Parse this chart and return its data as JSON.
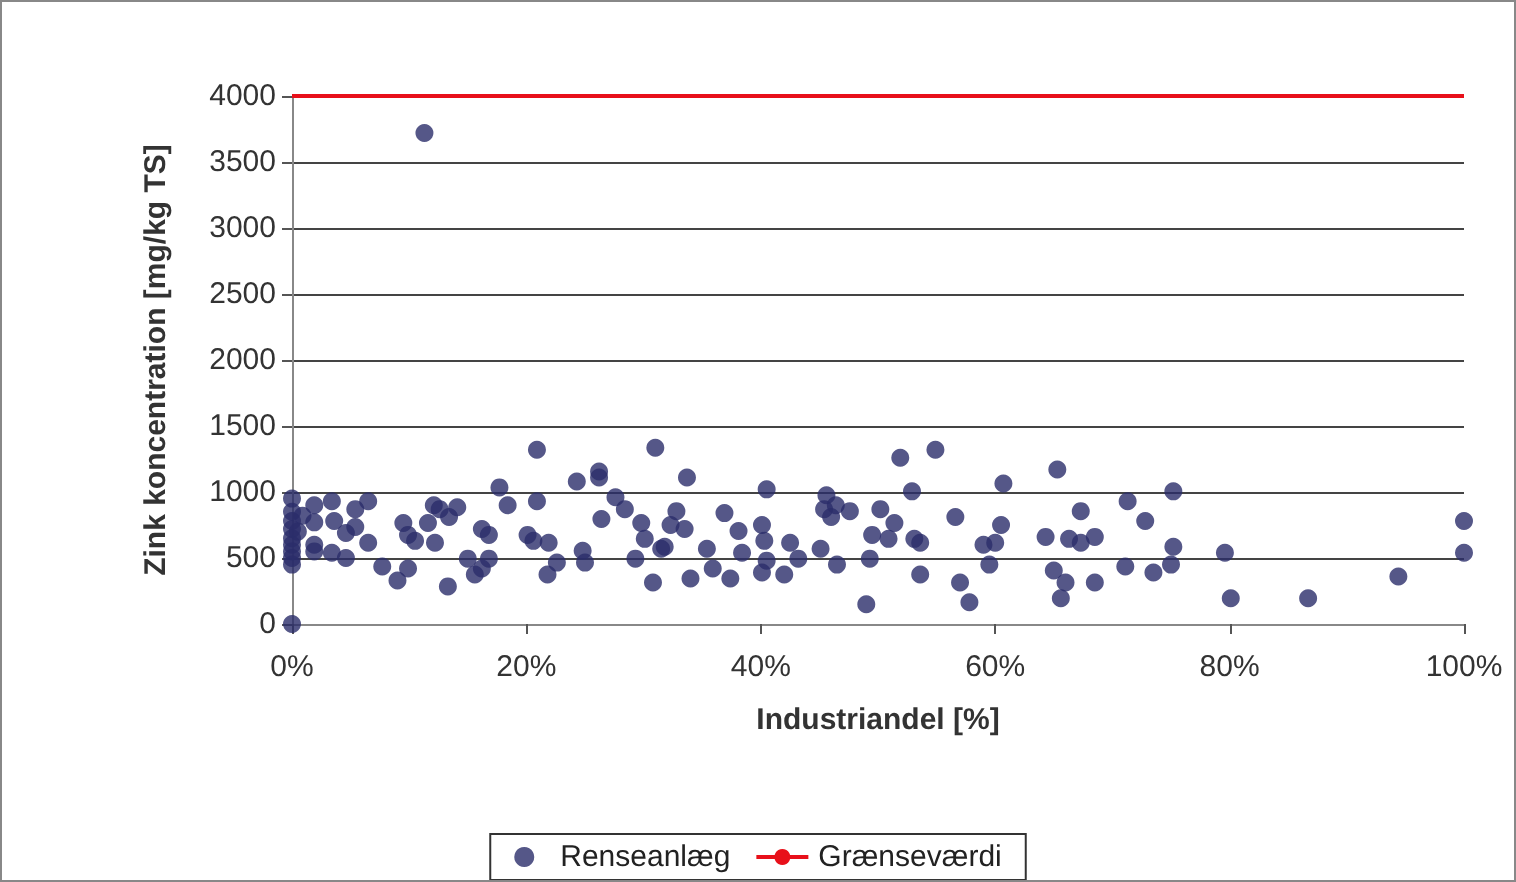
{
  "chart_data": {
    "type": "scatter",
    "xlabel": "Industriandel [%]",
    "ylabel": "Zink koncentration [mg/kg TS]",
    "xlim": [
      0,
      100
    ],
    "xticks": [
      {
        "value": 0,
        "label": "0%"
      },
      {
        "value": 20,
        "label": "20%"
      },
      {
        "value": 40,
        "label": "40%"
      },
      {
        "value": 60,
        "label": "60%"
      },
      {
        "value": 80,
        "label": "80%"
      },
      {
        "value": 100,
        "label": "100%"
      }
    ],
    "ylim": [
      0,
      4000
    ],
    "yticks": [
      0,
      500,
      1000,
      1500,
      2000,
      2500,
      3000,
      3500,
      4000
    ],
    "grid": "y",
    "legend": "bottom",
    "marker": "circle",
    "ref_lines": [
      {
        "axis": "y",
        "value": 4000,
        "label": "Grænseværdi",
        "color": "#e8101a",
        "line_style": "solid"
      }
    ],
    "series": [
      {
        "name": "Renseanlæg",
        "color": "#2b2d6a",
        "x": [
          0,
          0,
          0,
          0,
          0,
          0,
          0,
          0,
          0,
          0,
          0.5,
          0.9,
          1.9,
          1.9,
          3.4,
          3.6,
          1.9,
          1.9,
          3.4,
          4.6,
          4.6,
          5.4,
          5.4,
          6.5,
          6.5,
          7.7,
          9,
          9.9,
          9.5,
          9.9,
          10.5,
          11.3,
          11.6,
          12.1,
          12.6,
          12.2,
          13.3,
          13.4,
          14.1,
          15,
          15.6,
          16.2,
          16.8,
          16.8,
          16.2,
          17.7,
          18.4,
          20.1,
          20.6,
          20.9,
          20.9,
          21.9,
          22.6,
          21.8,
          24.3,
          24.8,
          25,
          26.2,
          26.2,
          26.4,
          27.6,
          28.4,
          29.3,
          29.8,
          30.8,
          31,
          30.1,
          31.5,
          32.3,
          33.7,
          32.8,
          33.5,
          31.8,
          34,
          35.4,
          35.9,
          36.9,
          37.4,
          38.1,
          38.4,
          40.1,
          40.3,
          40.5,
          40.1,
          40.5,
          42,
          42.5,
          43.2,
          45.1,
          45.6,
          45.4,
          46,
          46.4,
          47.6,
          46.5,
          49,
          49.3,
          49.5,
          50.2,
          50.9,
          51.4,
          51.9,
          52.9,
          53.1,
          53.6,
          53.6,
          54.9,
          56.6,
          57,
          57.8,
          59,
          60,
          59.5,
          60.7,
          60.5,
          64.3,
          65.3,
          65,
          66,
          65.6,
          66.3,
          67.3,
          67.3,
          68.5,
          68.5,
          71.3,
          72.8,
          71.1,
          73.5,
          75.2,
          75.2,
          75,
          79.6,
          80.1,
          86.7,
          94.4,
          100,
          100
        ],
        "values": [
          0,
          950,
          850,
          780,
          720,
          650,
          600,
          550,
          500,
          450,
          700,
          820,
          900,
          770,
          930,
          780,
          600,
          550,
          540,
          690,
          500,
          735,
          870,
          930,
          615,
          435,
          330,
          420,
          765,
          675,
          630,
          3720,
          765,
          900,
          870,
          615,
          285,
          810,
          885,
          495,
          375,
          720,
          675,
          495,
          420,
          1035,
          900,
          675,
          630,
          1320,
          930,
          615,
          465,
          375,
          1080,
          555,
          465,
          1155,
          1110,
          795,
          960,
          870,
          495,
          765,
          315,
          1335,
          645,
          570,
          750,
          1110,
          855,
          720,
          585,
          345,
          570,
          420,
          840,
          345,
          705,
          540,
          750,
          630,
          480,
          390,
          1020,
          375,
          615,
          495,
          570,
          975,
          870,
          810,
          900,
          855,
          450,
          150,
          495,
          675,
          870,
          645,
          765,
          1260,
          1005,
          645,
          615,
          375,
          1320,
          810,
          315,
          165,
          600,
          615,
          450,
          1065,
          750,
          660,
          1170,
          405,
          315,
          195,
          645,
          855,
          615,
          660,
          315,
          930,
          780,
          435,
          390,
          1005,
          585,
          450,
          540,
          195,
          195,
          360,
          780,
          540
        ]
      }
    ]
  }
}
